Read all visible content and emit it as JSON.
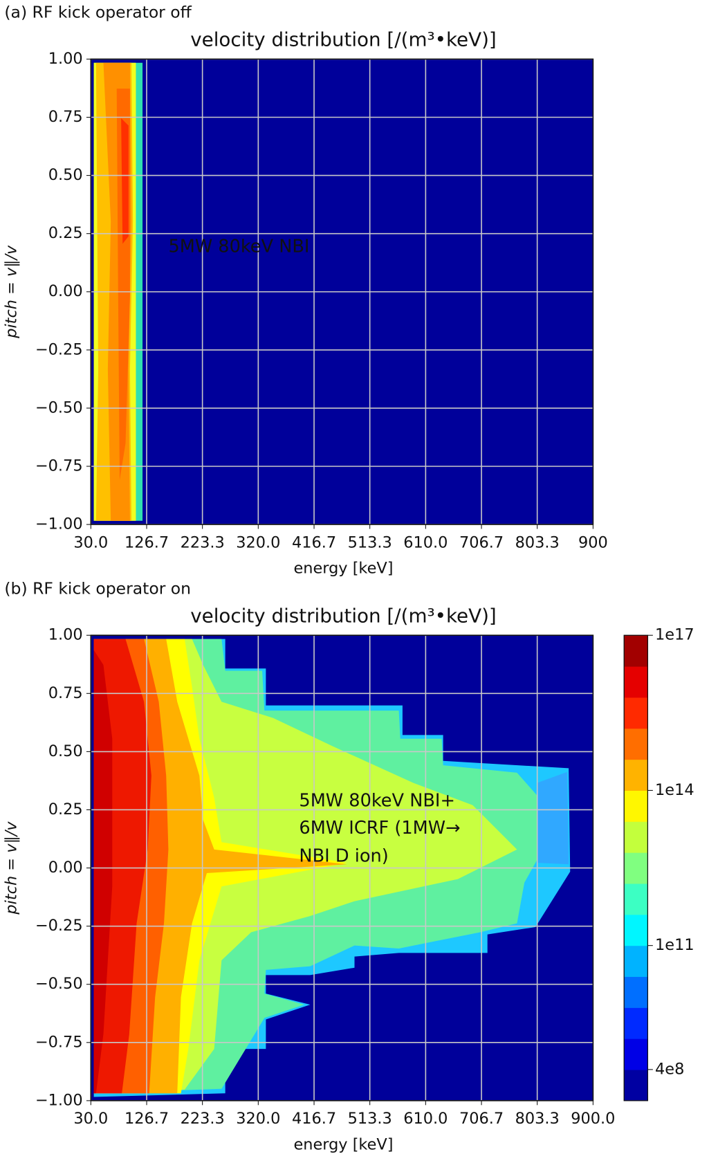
{
  "chart_data": [
    {
      "type": "contour",
      "panel_label": "(a) RF kick operator off",
      "title": "velocity distribution [/(m³•keV)]",
      "x_label": "energy [keV]",
      "y_label": "pitch = v∥/v",
      "xlim": [
        30,
        900
      ],
      "ylim": [
        -1,
        1
      ],
      "xticks": [
        {
          "value": 30,
          "label": "30.0"
        },
        {
          "value": 126.7,
          "label": "126.7"
        },
        {
          "value": 223.3,
          "label": "223.3"
        },
        {
          "value": 320,
          "label": "320.0"
        },
        {
          "value": 416.7,
          "label": "416.7"
        },
        {
          "value": 513.3,
          "label": "513.3"
        },
        {
          "value": 610,
          "label": "610.0"
        },
        {
          "value": 706.7,
          "label": "706.7"
        },
        {
          "value": 803.3,
          "label": "803.3"
        },
        900
      ],
      "yticks": [
        {
          "value": 1,
          "label": "1.00"
        },
        {
          "value": 0.75,
          "label": "0.75"
        },
        {
          "value": 0.5,
          "label": "0.50"
        },
        {
          "value": 0.25,
          "label": "0.25"
        },
        {
          "value": 0,
          "label": "0.00"
        },
        {
          "value": -0.25,
          "label": "−0.25"
        },
        {
          "value": -0.5,
          "label": "−0.50"
        },
        {
          "value": -0.75,
          "label": "−0.75"
        },
        {
          "value": -1,
          "label": "−1.00"
        }
      ],
      "grid": true,
      "annotations": [
        "5MW 80keV NBI"
      ],
      "annotation_color": "#ffffff"
    },
    {
      "type": "contour",
      "panel_label": "(b) RF kick operator  on",
      "title": "velocity distribution [/(m³•keV)]",
      "x_label": "energy [keV]",
      "y_label": "pitch = v∥/v",
      "xlim": [
        30,
        900
      ],
      "ylim": [
        -1,
        1
      ],
      "xticks": [
        {
          "value": 30,
          "label": "30.0"
        },
        {
          "value": 126.7,
          "label": "126.7"
        },
        {
          "value": 223.3,
          "label": "223.3"
        },
        {
          "value": 320,
          "label": "320.0"
        },
        {
          "value": 416.7,
          "label": "416.7"
        },
        {
          "value": 513.3,
          "label": "513.3"
        },
        {
          "value": 610,
          "label": "610.0"
        },
        {
          "value": 706.7,
          "label": "706.7"
        },
        {
          "value": 803.3,
          "label": "803.3"
        },
        {
          "value": 900,
          "label": "900.0"
        }
      ],
      "yticks": [
        {
          "value": 1,
          "label": "1.00"
        },
        {
          "value": 0.75,
          "label": "0.75"
        },
        {
          "value": 0.5,
          "label": "0.50"
        },
        {
          "value": 0.25,
          "label": "0.25"
        },
        {
          "value": 0,
          "label": "0.00"
        },
        {
          "value": -0.25,
          "label": "−0.25"
        },
        {
          "value": -0.5,
          "label": "−0.50"
        },
        {
          "value": -0.75,
          "label": "−0.75"
        },
        {
          "value": -1,
          "label": "−1.00"
        }
      ],
      "grid": true,
      "annotations": [
        "5MW 80keV NBI+",
        "6MW ICRF (1MW→",
        "NBI D ion)"
      ],
      "annotation_color": "#111111",
      "colorbar": {
        "scale": "log",
        "lim": [
          100000000,
          100000000000000000
        ],
        "ticks": [
          {
            "value": 100000000000000000,
            "label": "1e17"
          },
          {
            "value": 100000000000000,
            "label": "1e14"
          },
          {
            "value": 100000000000,
            "label": "1e11"
          },
          {
            "value": 400000000,
            "label": "4e8"
          }
        ]
      }
    }
  ]
}
